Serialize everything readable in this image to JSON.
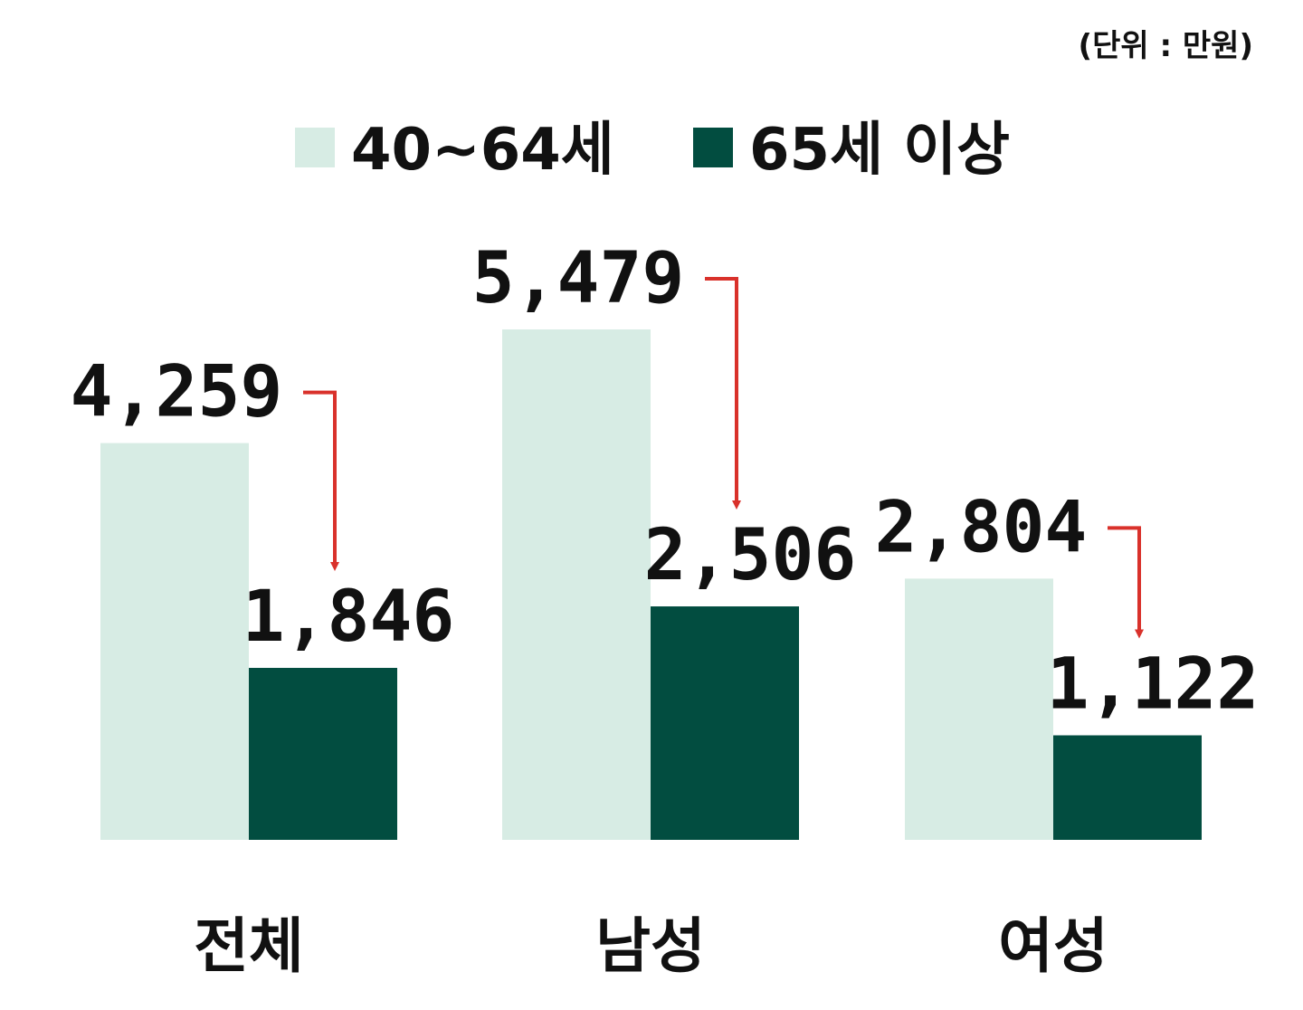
{
  "chart_data": {
    "type": "bar",
    "unit_note": "(단위 : 만원)",
    "categories": [
      "전체",
      "남성",
      "여성"
    ],
    "series": [
      {
        "name": "40~64세",
        "color": "#d7ece4",
        "values": [
          4259,
          5479,
          2804
        ],
        "labels": [
          "4,259",
          "5,479",
          "2,804"
        ]
      },
      {
        "name": "65세 이상",
        "color": "#024d40",
        "values": [
          1846,
          2506,
          1122
        ],
        "labels": [
          "1,846",
          "2,506",
          "1,122"
        ]
      }
    ],
    "ylim": [
      0,
      6000
    ],
    "legend_position": "top-center",
    "grid": false,
    "annotation_color": "#d9312b",
    "annotation": "decrease-arrows"
  }
}
